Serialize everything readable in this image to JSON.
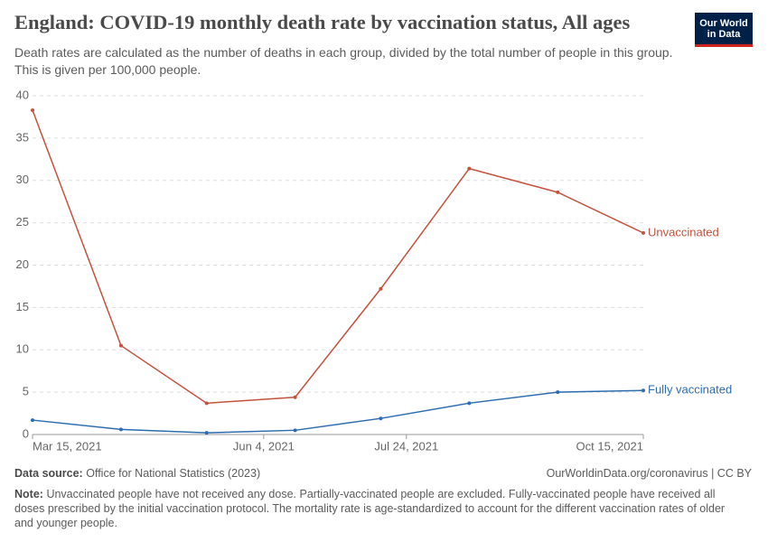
{
  "chart_data": {
    "type": "line",
    "title": "England: COVID-19 monthly death rate by vaccination status, All ages",
    "subtitle": "Death rates are calculated as the number of deaths in each group, divided by the total number of people in this group. This is given per 100,000 people.",
    "x": [
      "2021-03-15",
      "2021-04-15",
      "2021-05-15",
      "2021-06-15",
      "2021-07-15",
      "2021-08-15",
      "2021-09-15",
      "2021-10-15"
    ],
    "series": [
      {
        "name": "Unvaccinated",
        "color": "#c4523e",
        "values": [
          38.3,
          10.5,
          3.7,
          4.4,
          17.2,
          31.4,
          28.6,
          23.8
        ]
      },
      {
        "name": "Fully vaccinated",
        "color": "#2d6cb0",
        "values": [
          1.7,
          0.6,
          0.2,
          0.5,
          1.9,
          3.7,
          5.0,
          5.2
        ]
      }
    ],
    "xlim": [
      "2021-03-15",
      "2021-10-15"
    ],
    "xticks": [
      {
        "value": "2021-03-15",
        "label": "Mar 15, 2021"
      },
      {
        "value": "2021-06-04",
        "label": "Jun 4, 2021"
      },
      {
        "value": "2021-07-24",
        "label": "Jul 24, 2021"
      },
      {
        "value": "2021-10-15",
        "label": "Oct 15, 2021"
      }
    ],
    "ylim": [
      0,
      40
    ],
    "yticks": [
      0,
      5,
      10,
      15,
      20,
      25,
      30,
      35,
      40
    ],
    "grid": true
  },
  "logo": [
    "Our World",
    "in Data"
  ],
  "footer": {
    "source_label": "Data source:",
    "source": "Office for National Statistics (2023)",
    "credit": "OurWorldinData.org/coronavirus | CC BY",
    "note_label": "Note:",
    "note": "Unvaccinated people have not received any dose. Partially-vaccinated people are excluded. Fully-vaccinated people have received all doses prescribed by the initial vaccination protocol. The mortality rate is age-standardized to account for the different vaccination rates of older and younger people."
  }
}
